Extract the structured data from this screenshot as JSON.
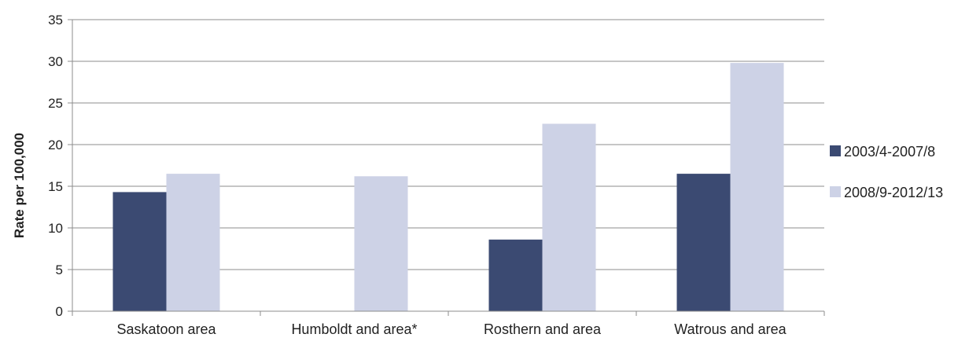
{
  "chart_data": {
    "type": "bar",
    "title": "",
    "xlabel": "",
    "ylabel": "Rate per 100,000",
    "ylim": [
      0,
      35
    ],
    "yticks": [
      0,
      5,
      10,
      15,
      20,
      25,
      30,
      35
    ],
    "grid": true,
    "legend_position": "right",
    "categories": [
      "Saskatoon area",
      "Humboldt and area*",
      "Rosthern and area",
      "Watrous and area"
    ],
    "series": [
      {
        "name": "2003/4-2007/8",
        "color": "#3b4a72",
        "values": [
          14.3,
          null,
          8.6,
          16.5
        ]
      },
      {
        "name": "2008/9-2012/13",
        "color": "#cdd2e6",
        "values": [
          16.5,
          16.2,
          22.5,
          29.8
        ]
      }
    ]
  }
}
